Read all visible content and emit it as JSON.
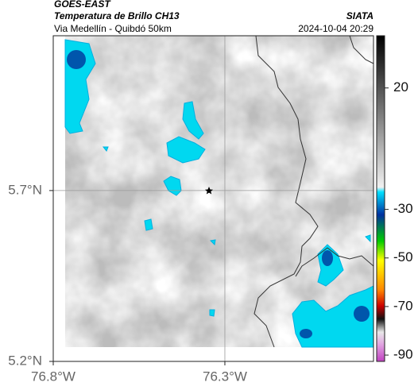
{
  "header": {
    "satellite": "GOES-EAST",
    "product": "Temperatura de Brillo CH13",
    "route": "Via Medellín - Quibdó 50km",
    "source": "SIATA",
    "timestamp": "2024-10-04 20:29"
  },
  "map": {
    "type": "map",
    "xlim": [
      -76.8,
      -75.867
    ],
    "ylim": [
      5.2,
      6.153
    ],
    "xticks": [
      {
        "value": -76.8,
        "label": "76.8°W"
      },
      {
        "value": -76.3,
        "label": "76.3°W"
      }
    ],
    "yticks": [
      {
        "value": 5.2,
        "label": "5.2°N"
      },
      {
        "value": 5.7,
        "label": "5.7°N"
      }
    ],
    "grid": true,
    "colorbar": {
      "lim": [
        -92.6,
        41.5
      ],
      "ticks": [
        20,
        -30,
        -50,
        -70,
        -90
      ]
    }
  }
}
